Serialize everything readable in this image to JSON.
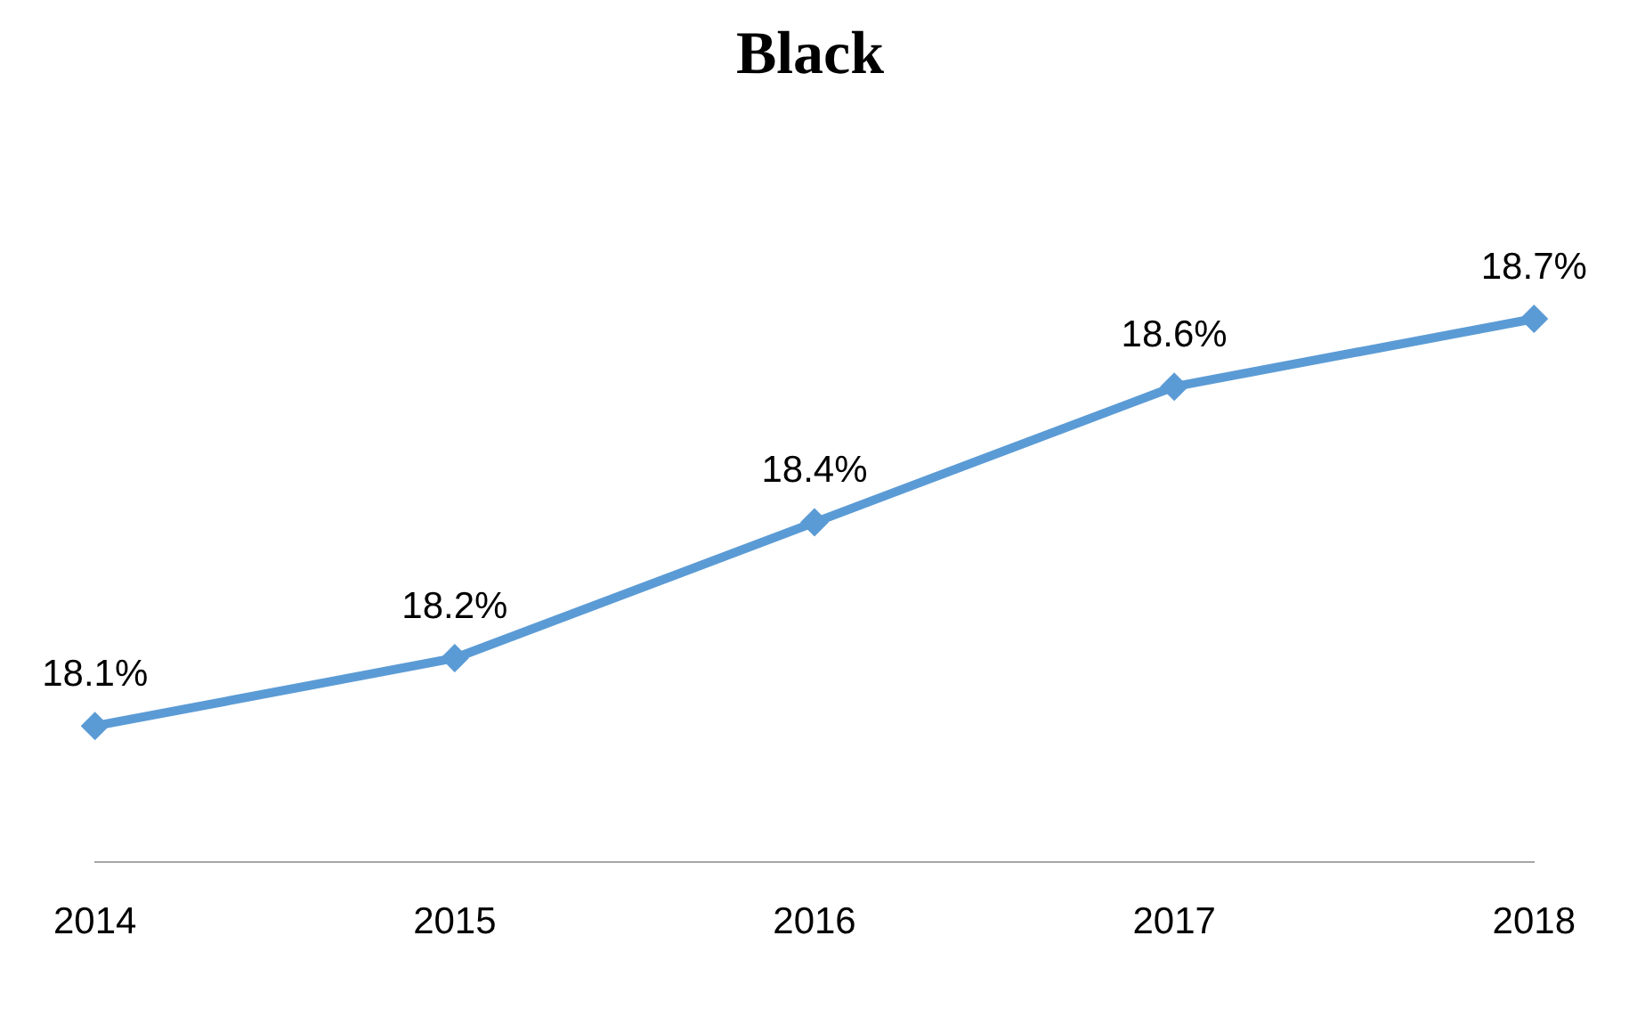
{
  "chart_data": {
    "type": "line",
    "title": "Black",
    "categories": [
      "2014",
      "2015",
      "2016",
      "2017",
      "2018"
    ],
    "series": [
      {
        "color": "#5b9bd5",
        "values": [
          18.1,
          18.2,
          18.4,
          18.6,
          18.7
        ],
        "value_labels": [
          "18.1%",
          "18.2%",
          "18.4%",
          "18.6%",
          "18.7%"
        ]
      }
    ],
    "tick_labels": "x",
    "grid": false,
    "legend": false,
    "marker": "diamond",
    "line_style": "solid"
  }
}
